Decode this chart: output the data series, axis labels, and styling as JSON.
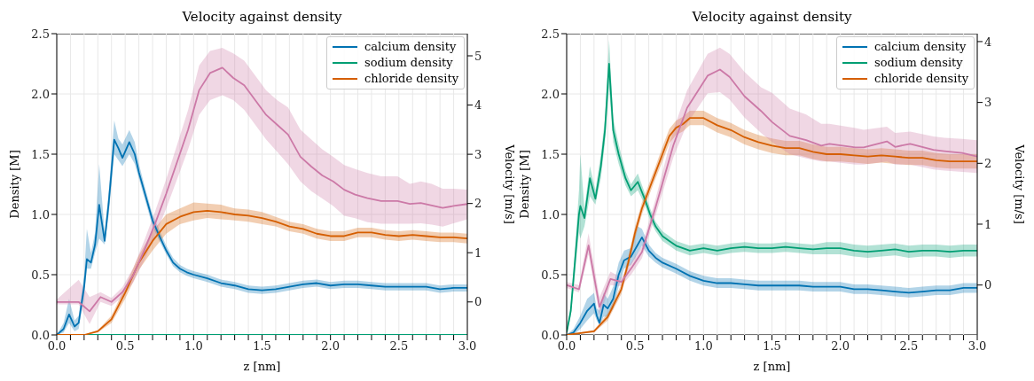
{
  "chart_data": [
    {
      "type": "line",
      "title": "Velocity against density",
      "xlabel": "z [nm]",
      "ylabel": "Density [M]",
      "y2label": "Velocity [m/s]",
      "xlim": [
        0,
        3
      ],
      "ylim": [
        0,
        2.5
      ],
      "y2lim": [
        -0.67,
        5.45
      ],
      "xticks": [
        {
          "value": 0,
          "label": "0.0"
        },
        {
          "value": 0.1,
          "label": null
        },
        {
          "value": 0.2,
          "label": null
        },
        {
          "value": 0.3,
          "label": null
        },
        {
          "value": 0.4,
          "label": null
        },
        0.5,
        {
          "value": 0.6,
          "label": null
        },
        {
          "value": 0.7,
          "label": null
        },
        {
          "value": 0.8,
          "label": null
        },
        {
          "value": 0.9,
          "label": null
        },
        {
          "value": 1,
          "label": "1.0"
        },
        {
          "value": 1.1,
          "label": null
        },
        {
          "value": 1.2,
          "label": null
        },
        {
          "value": 1.3,
          "label": null
        },
        {
          "value": 1.4,
          "label": null
        },
        1.5,
        {
          "value": 1.6,
          "label": null
        },
        {
          "value": 1.7,
          "label": null
        },
        {
          "value": 1.8,
          "label": null
        },
        {
          "value": 1.9,
          "label": null
        },
        {
          "value": 2,
          "label": "2.0"
        },
        {
          "value": 2.1,
          "label": null
        },
        {
          "value": 2.2,
          "label": null
        },
        {
          "value": 2.3,
          "label": null
        },
        {
          "value": 2.4,
          "label": null
        },
        2.5,
        {
          "value": 2.6,
          "label": null
        },
        {
          "value": 2.7,
          "label": null
        },
        {
          "value": 2.8,
          "label": null
        },
        {
          "value": 2.9,
          "label": null
        },
        {
          "value": 3,
          "label": "3.0"
        }
      ],
      "yticks": [
        {
          "value": 0,
          "label": "0.0"
        },
        0.5,
        {
          "value": 1,
          "label": "1.0"
        },
        1.5,
        {
          "value": 2,
          "label": "2.0"
        },
        2.5
      ],
      "y2ticks": [
        0,
        1,
        2,
        3,
        4,
        5
      ],
      "grid": true,
      "legend": "top right",
      "series": [
        {
          "name": "calcium density",
          "color": "#0072b2",
          "x": [
            0,
            0.05,
            0.09,
            0.13,
            0.16,
            0.2,
            0.22,
            0.25,
            0.28,
            0.31,
            0.35,
            0.38,
            0.42,
            0.45,
            0.48,
            0.53,
            0.57,
            0.6,
            0.65,
            0.7,
            0.75,
            0.8,
            0.85,
            0.9,
            0.95,
            1.0,
            1.1,
            1.2,
            1.3,
            1.4,
            1.5,
            1.6,
            1.7,
            1.8,
            1.9,
            2.0,
            2.1,
            2.2,
            2.3,
            2.4,
            2.5,
            2.6,
            2.7,
            2.8,
            2.9,
            3.0
          ],
          "values": [
            0,
            0.05,
            0.17,
            0.07,
            0.1,
            0.4,
            0.63,
            0.6,
            0.75,
            1.08,
            0.78,
            1.1,
            1.62,
            1.55,
            1.47,
            1.6,
            1.5,
            1.35,
            1.15,
            0.95,
            0.82,
            0.7,
            0.6,
            0.55,
            0.52,
            0.5,
            0.47,
            0.43,
            0.41,
            0.38,
            0.37,
            0.38,
            0.4,
            0.42,
            0.43,
            0.41,
            0.42,
            0.42,
            0.41,
            0.4,
            0.4,
            0.4,
            0.4,
            0.38,
            0.39,
            0.39
          ],
          "lower": [
            0,
            0.02,
            0.1,
            0.03,
            0.05,
            0.32,
            0.55,
            0.55,
            0.68,
            0.8,
            0.75,
            1.0,
            1.5,
            1.45,
            1.4,
            1.5,
            1.42,
            1.3,
            1.1,
            0.9,
            0.78,
            0.67,
            0.57,
            0.52,
            0.49,
            0.47,
            0.44,
            0.4,
            0.38,
            0.35,
            0.34,
            0.35,
            0.37,
            0.39,
            0.4,
            0.38,
            0.39,
            0.39,
            0.38,
            0.37,
            0.37,
            0.37,
            0.37,
            0.35,
            0.36,
            0.36
          ],
          "upper": [
            0,
            0.1,
            0.3,
            0.12,
            0.16,
            0.5,
            0.88,
            0.68,
            0.85,
            1.42,
            0.85,
            1.2,
            1.78,
            1.63,
            1.58,
            1.7,
            1.6,
            1.42,
            1.2,
            1.0,
            0.87,
            0.74,
            0.64,
            0.58,
            0.55,
            0.53,
            0.5,
            0.46,
            0.44,
            0.41,
            0.4,
            0.41,
            0.43,
            0.45,
            0.46,
            0.44,
            0.45,
            0.45,
            0.44,
            0.43,
            0.43,
            0.43,
            0.43,
            0.41,
            0.42,
            0.42
          ]
        },
        {
          "name": "sodium density",
          "color": "#009e73",
          "x": [
            0,
            3
          ],
          "values": [
            0,
            0
          ]
        },
        {
          "name": "chloride density",
          "color": "#d55e00",
          "x": [
            0,
            0.2,
            0.3,
            0.4,
            0.5,
            0.6,
            0.7,
            0.8,
            0.9,
            1.0,
            1.1,
            1.2,
            1.3,
            1.4,
            1.5,
            1.6,
            1.7,
            1.8,
            1.9,
            2.0,
            2.1,
            2.2,
            2.3,
            2.4,
            2.5,
            2.6,
            2.7,
            2.8,
            2.9,
            3.0
          ],
          "values": [
            0,
            0,
            0.03,
            0.13,
            0.35,
            0.6,
            0.78,
            0.92,
            0.98,
            1.02,
            1.03,
            1.02,
            1.0,
            0.99,
            0.97,
            0.94,
            0.9,
            0.88,
            0.84,
            0.82,
            0.82,
            0.85,
            0.85,
            0.83,
            0.82,
            0.83,
            0.82,
            0.81,
            0.81,
            0.8
          ],
          "lower": [
            0,
            0,
            0.02,
            0.1,
            0.3,
            0.54,
            0.7,
            0.84,
            0.92,
            0.95,
            0.97,
            0.96,
            0.95,
            0.94,
            0.92,
            0.9,
            0.86,
            0.84,
            0.8,
            0.78,
            0.78,
            0.81,
            0.81,
            0.79,
            0.78,
            0.79,
            0.78,
            0.77,
            0.77,
            0.76
          ],
          "upper": [
            0,
            0,
            0.04,
            0.16,
            0.4,
            0.66,
            0.86,
            1.0,
            1.05,
            1.1,
            1.09,
            1.08,
            1.05,
            1.04,
            1.02,
            0.98,
            0.94,
            0.92,
            0.88,
            0.86,
            0.86,
            0.89,
            0.89,
            0.87,
            0.86,
            0.87,
            0.86,
            0.85,
            0.85,
            0.84
          ]
        },
        {
          "color": "#cc79a7",
          "axis": "y2",
          "x": [
            0,
            0.16,
            0.24,
            0.32,
            0.4,
            0.48,
            0.56,
            0.64,
            0.72,
            0.8,
            0.88,
            0.96,
            1.04,
            1.12,
            1.21,
            1.29,
            1.37,
            1.45,
            1.53,
            1.61,
            1.69,
            1.78,
            1.86,
            1.94,
            2.02,
            2.1,
            2.18,
            2.27,
            2.37,
            2.49,
            2.58,
            2.66,
            2.74,
            2.82,
            2.9,
            3.0
          ],
          "values": [
            0,
            0,
            -0.19,
            0.1,
            0,
            0.2,
            0.55,
            1.05,
            1.6,
            2.2,
            2.85,
            3.5,
            4.3,
            4.65,
            4.76,
            4.55,
            4.4,
            4.1,
            3.8,
            3.6,
            3.4,
            2.95,
            2.75,
            2.57,
            2.45,
            2.28,
            2.18,
            2.11,
            2.05,
            2.05,
            1.99,
            2.01,
            1.96,
            1.91,
            1.95,
            1.99
          ],
          "lower": [
            -0.05,
            -0.05,
            -0.45,
            0.0,
            -0.08,
            0.1,
            0.4,
            0.85,
            1.35,
            1.9,
            2.5,
            3.1,
            3.8,
            4.1,
            4.2,
            4.1,
            3.9,
            3.6,
            3.3,
            3.05,
            2.8,
            2.45,
            2.25,
            2.1,
            1.95,
            1.75,
            1.7,
            1.62,
            1.59,
            1.59,
            1.59,
            1.6,
            1.57,
            1.53,
            1.6,
            1.68
          ],
          "upper": [
            0.05,
            0.45,
            0.1,
            0.2,
            0.08,
            0.3,
            0.7,
            1.25,
            1.85,
            2.5,
            3.2,
            3.9,
            4.8,
            5.1,
            5.16,
            5.05,
            4.9,
            4.6,
            4.3,
            4.1,
            3.95,
            3.5,
            3.3,
            3.1,
            2.95,
            2.78,
            2.7,
            2.62,
            2.55,
            2.55,
            2.4,
            2.45,
            2.4,
            2.3,
            2.3,
            2.28
          ]
        }
      ]
    },
    {
      "type": "line",
      "title": "Velocity against density",
      "xlabel": "z [nm]",
      "ylabel": "Density [M]",
      "y2label": "Velocity [m/s]",
      "xlim": [
        0,
        3
      ],
      "ylim": [
        0,
        2.5
      ],
      "y2lim": [
        -0.82,
        4.13
      ],
      "xticks": [
        {
          "value": 0,
          "label": "0.0"
        },
        {
          "value": 0.1,
          "label": null
        },
        {
          "value": 0.2,
          "label": null
        },
        {
          "value": 0.3,
          "label": null
        },
        {
          "value": 0.4,
          "label": null
        },
        0.5,
        {
          "value": 0.6,
          "label": null
        },
        {
          "value": 0.7,
          "label": null
        },
        {
          "value": 0.8,
          "label": null
        },
        {
          "value": 0.9,
          "label": null
        },
        {
          "value": 1,
          "label": "1.0"
        },
        {
          "value": 1.1,
          "label": null
        },
        {
          "value": 1.2,
          "label": null
        },
        {
          "value": 1.3,
          "label": null
        },
        {
          "value": 1.4,
          "label": null
        },
        1.5,
        {
          "value": 1.6,
          "label": null
        },
        {
          "value": 1.7,
          "label": null
        },
        {
          "value": 1.8,
          "label": null
        },
        {
          "value": 1.9,
          "label": null
        },
        {
          "value": 2,
          "label": "2.0"
        },
        {
          "value": 2.1,
          "label": null
        },
        {
          "value": 2.2,
          "label": null
        },
        {
          "value": 2.3,
          "label": null
        },
        {
          "value": 2.4,
          "label": null
        },
        2.5,
        {
          "value": 2.6,
          "label": null
        },
        {
          "value": 2.7,
          "label": null
        },
        {
          "value": 2.8,
          "label": null
        },
        {
          "value": 2.9,
          "label": null
        },
        {
          "value": 3,
          "label": "3.0"
        }
      ],
      "yticks": [
        {
          "value": 0,
          "label": "0.0"
        },
        0.5,
        {
          "value": 1,
          "label": "1.0"
        },
        1.5,
        {
          "value": 2,
          "label": "2.0"
        },
        2.5
      ],
      "y2ticks": [
        0,
        1,
        2,
        3,
        4
      ],
      "grid": true,
      "legend": "top right",
      "series": [
        {
          "name": "calcium density",
          "color": "#0072b2",
          "x": [
            0,
            0.05,
            0.1,
            0.15,
            0.2,
            0.22,
            0.24,
            0.27,
            0.3,
            0.34,
            0.38,
            0.42,
            0.47,
            0.52,
            0.55,
            0.6,
            0.65,
            0.7,
            0.8,
            0.9,
            1.0,
            1.1,
            1.2,
            1.3,
            1.4,
            1.5,
            1.6,
            1.7,
            1.8,
            1.9,
            2.0,
            2.1,
            2.2,
            2.3,
            2.4,
            2.5,
            2.6,
            2.7,
            2.8,
            2.9,
            3.0
          ],
          "values": [
            0,
            0.02,
            0.1,
            0.2,
            0.26,
            0.16,
            0.1,
            0.25,
            0.22,
            0.3,
            0.5,
            0.62,
            0.65,
            0.75,
            0.81,
            0.7,
            0.64,
            0.6,
            0.55,
            0.49,
            0.45,
            0.43,
            0.43,
            0.42,
            0.41,
            0.41,
            0.41,
            0.41,
            0.4,
            0.4,
            0.4,
            0.38,
            0.38,
            0.37,
            0.36,
            0.35,
            0.36,
            0.37,
            0.37,
            0.39,
            0.39
          ],
          "lower": [
            0,
            0,
            0.05,
            0.12,
            0.18,
            0.12,
            0.08,
            0.15,
            0.15,
            0.22,
            0.4,
            0.55,
            0.58,
            0.68,
            0.74,
            0.65,
            0.6,
            0.56,
            0.51,
            0.45,
            0.41,
            0.39,
            0.39,
            0.38,
            0.37,
            0.37,
            0.37,
            0.37,
            0.36,
            0.36,
            0.36,
            0.34,
            0.34,
            0.33,
            0.32,
            0.31,
            0.32,
            0.33,
            0.33,
            0.35,
            0.35
          ],
          "upper": [
            0,
            0.05,
            0.16,
            0.3,
            0.35,
            0.22,
            0.2,
            0.35,
            0.3,
            0.4,
            0.6,
            0.7,
            0.72,
            0.9,
            0.88,
            0.75,
            0.68,
            0.64,
            0.59,
            0.53,
            0.49,
            0.47,
            0.47,
            0.46,
            0.45,
            0.45,
            0.45,
            0.45,
            0.44,
            0.44,
            0.44,
            0.42,
            0.42,
            0.41,
            0.4,
            0.39,
            0.4,
            0.41,
            0.41,
            0.43,
            0.43
          ]
        },
        {
          "name": "sodium density",
          "color": "#009e73",
          "x": [
            0,
            0.03,
            0.06,
            0.09,
            0.1,
            0.13,
            0.17,
            0.21,
            0.25,
            0.28,
            0.31,
            0.34,
            0.38,
            0.43,
            0.47,
            0.52,
            0.57,
            0.61,
            0.65,
            0.7,
            0.75,
            0.8,
            0.9,
            1.0,
            1.1,
            1.2,
            1.3,
            1.4,
            1.5,
            1.6,
            1.7,
            1.8,
            1.9,
            2.0,
            2.1,
            2.2,
            2.3,
            2.4,
            2.5,
            2.6,
            2.7,
            2.8,
            2.9,
            3.0
          ],
          "values": [
            0.02,
            0.2,
            0.6,
            1.0,
            1.07,
            0.97,
            1.3,
            1.13,
            1.4,
            1.7,
            2.25,
            1.7,
            1.5,
            1.3,
            1.2,
            1.27,
            1.13,
            1.0,
            0.9,
            0.82,
            0.78,
            0.74,
            0.7,
            0.72,
            0.7,
            0.72,
            0.73,
            0.72,
            0.72,
            0.73,
            0.72,
            0.71,
            0.72,
            0.72,
            0.7,
            0.69,
            0.7,
            0.71,
            0.69,
            0.7,
            0.7,
            0.69,
            0.7,
            0.7
          ],
          "lower": [
            0.01,
            0.15,
            0.5,
            0.85,
            0.8,
            0.9,
            1.15,
            1.08,
            1.3,
            1.6,
            2.05,
            1.6,
            1.42,
            1.24,
            1.15,
            1.2,
            1.08,
            0.95,
            0.86,
            0.78,
            0.74,
            0.7,
            0.66,
            0.68,
            0.66,
            0.68,
            0.69,
            0.68,
            0.68,
            0.69,
            0.68,
            0.67,
            0.67,
            0.67,
            0.65,
            0.64,
            0.65,
            0.66,
            0.64,
            0.65,
            0.65,
            0.64,
            0.65,
            0.65
          ],
          "upper": [
            0.03,
            0.25,
            0.7,
            1.2,
            1.5,
            1.05,
            1.4,
            1.2,
            1.5,
            1.8,
            2.45,
            1.8,
            1.58,
            1.36,
            1.25,
            1.34,
            1.18,
            1.05,
            0.94,
            0.86,
            0.82,
            0.78,
            0.74,
            0.76,
            0.74,
            0.76,
            0.77,
            0.76,
            0.76,
            0.77,
            0.76,
            0.75,
            0.77,
            0.77,
            0.75,
            0.74,
            0.75,
            0.76,
            0.74,
            0.75,
            0.75,
            0.74,
            0.75,
            0.75
          ]
        },
        {
          "name": "chloride density",
          "color": "#d55e00",
          "x": [
            0,
            0.2,
            0.3,
            0.4,
            0.45,
            0.5,
            0.55,
            0.6,
            0.65,
            0.7,
            0.75,
            0.8,
            0.85,
            0.9,
            0.95,
            1.0,
            1.1,
            1.2,
            1.3,
            1.4,
            1.5,
            1.6,
            1.7,
            1.8,
            1.9,
            2.0,
            2.1,
            2.2,
            2.3,
            2.4,
            2.5,
            2.6,
            2.7,
            2.8,
            2.9,
            3.0
          ],
          "values": [
            0,
            0.03,
            0.15,
            0.38,
            0.6,
            0.85,
            1.05,
            1.2,
            1.35,
            1.5,
            1.65,
            1.72,
            1.75,
            1.8,
            1.8,
            1.8,
            1.74,
            1.7,
            1.64,
            1.6,
            1.57,
            1.55,
            1.55,
            1.52,
            1.5,
            1.5,
            1.49,
            1.48,
            1.49,
            1.48,
            1.47,
            1.47,
            1.45,
            1.44,
            1.44,
            1.44
          ],
          "lower": [
            0,
            0.02,
            0.12,
            0.34,
            0.55,
            0.8,
            1.0,
            1.15,
            1.3,
            1.44,
            1.59,
            1.66,
            1.69,
            1.74,
            1.74,
            1.74,
            1.68,
            1.64,
            1.58,
            1.54,
            1.51,
            1.49,
            1.49,
            1.46,
            1.44,
            1.44,
            1.43,
            1.42,
            1.43,
            1.42,
            1.41,
            1.41,
            1.39,
            1.38,
            1.38,
            1.38
          ],
          "upper": [
            0,
            0.04,
            0.18,
            0.42,
            0.65,
            0.9,
            1.1,
            1.25,
            1.4,
            1.56,
            1.71,
            1.78,
            1.81,
            1.86,
            1.86,
            1.86,
            1.8,
            1.76,
            1.7,
            1.66,
            1.63,
            1.61,
            1.61,
            1.58,
            1.56,
            1.56,
            1.55,
            1.54,
            1.55,
            1.54,
            1.53,
            1.53,
            1.51,
            1.5,
            1.5,
            1.5
          ]
        },
        {
          "color": "#cc79a7",
          "axis": "y2",
          "x": [
            0,
            0.09,
            0.16,
            0.24,
            0.32,
            0.4,
            0.48,
            0.55,
            0.65,
            0.78,
            0.88,
            1.03,
            1.12,
            1.19,
            1.3,
            1.42,
            1.5,
            1.63,
            1.75,
            1.86,
            1.92,
            2.11,
            2.17,
            2.34,
            2.4,
            2.51,
            2.68,
            2.76,
            2.89,
            3.0
          ],
          "values": [
            0,
            -0.07,
            0.65,
            -0.36,
            0.1,
            0.05,
            0.3,
            0.54,
            1.28,
            2.3,
            2.91,
            3.44,
            3.54,
            3.42,
            3.1,
            2.86,
            2.68,
            2.45,
            2.38,
            2.29,
            2.32,
            2.26,
            2.26,
            2.36,
            2.27,
            2.32,
            2.22,
            2.2,
            2.17,
            2.11
          ],
          "lower": [
            -0.05,
            -0.12,
            0.5,
            -0.5,
            0.0,
            -0.02,
            0.2,
            0.44,
            1.15,
            2.1,
            2.65,
            3.15,
            3.17,
            3.05,
            2.75,
            2.5,
            2.35,
            2.15,
            2.08,
            2.03,
            2.03,
            1.98,
            1.98,
            2.03,
            1.98,
            1.98,
            1.9,
            1.88,
            1.86,
            1.84
          ],
          "upper": [
            0.05,
            0.0,
            0.85,
            -0.2,
            0.22,
            0.12,
            0.4,
            0.64,
            1.42,
            2.55,
            3.2,
            3.8,
            3.9,
            3.8,
            3.5,
            3.25,
            3.16,
            2.9,
            2.8,
            2.65,
            2.65,
            2.58,
            2.55,
            2.6,
            2.5,
            2.52,
            2.44,
            2.42,
            2.4,
            2.38
          ]
        }
      ]
    }
  ]
}
